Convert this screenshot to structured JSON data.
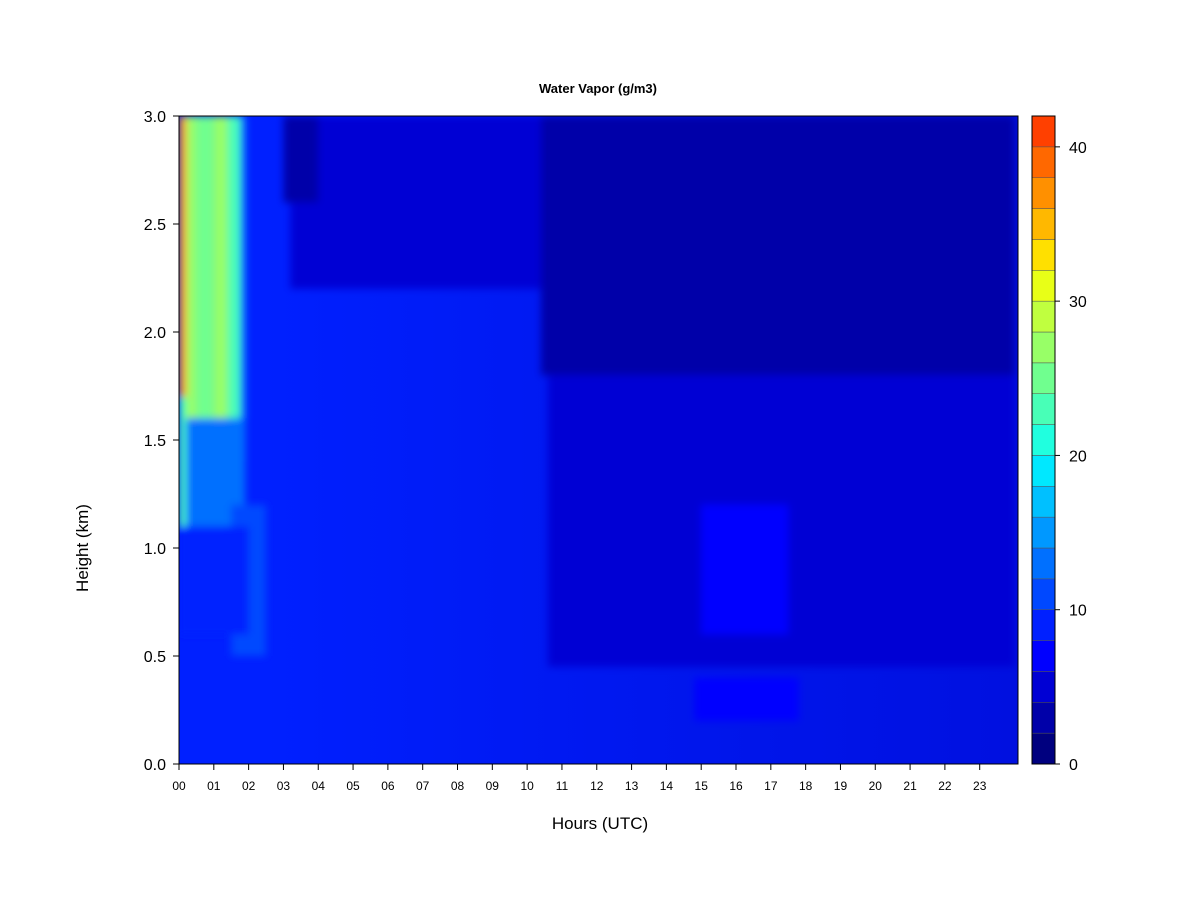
{
  "chart_data": {
    "type": "heatmap",
    "title": "Water Vapor (g/m3)",
    "xlabel": "Hours (UTC)",
    "ylabel": "Height (km)",
    "xlim": [
      0,
      24
    ],
    "ylim": [
      0,
      3
    ],
    "x_ticks": [
      "00",
      "01",
      "02",
      "03",
      "04",
      "05",
      "06",
      "07",
      "08",
      "09",
      "10",
      "11",
      "12",
      "13",
      "14",
      "15",
      "16",
      "17",
      "18",
      "19",
      "20",
      "21",
      "22",
      "23"
    ],
    "y_ticks": [
      "0.0",
      "0.5",
      "1.0",
      "1.5",
      "2.0",
      "2.5",
      "3.0"
    ],
    "colorbar": {
      "min": 0,
      "max": 42,
      "step": 2,
      "tick_labels": [
        "0",
        "10",
        "20",
        "30",
        "40"
      ],
      "colors": [
        "#00007f",
        "#0000a9",
        "#0000d4",
        "#0000ff",
        "#0020ff",
        "#0048ff",
        "#0070ff",
        "#0098ff",
        "#00c0ff",
        "#00e8ff",
        "#20ffdf",
        "#48ffb7",
        "#70ff8f",
        "#98ff67",
        "#c0ff3f",
        "#e8ff17",
        "#ffe000",
        "#ffb800",
        "#ff9000",
        "#ff6800",
        "#ff4000",
        "#ff1800",
        "#d40000",
        "#aa0000",
        "#7f0000"
      ]
    },
    "regions": [
      {
        "x0": 0,
        "x1": 0.2,
        "y0": 1.7,
        "y1": 3.0,
        "value": 37
      },
      {
        "x0": 0,
        "x1": 0.2,
        "y0": 1.1,
        "y1": 1.7,
        "value": 22
      },
      {
        "x0": 0.2,
        "x1": 0.5,
        "y0": 1.6,
        "y1": 3.0,
        "value": 27
      },
      {
        "x0": 0.5,
        "x1": 1.0,
        "y0": 1.5,
        "y1": 3.0,
        "value": 24
      },
      {
        "x0": 1.0,
        "x1": 1.4,
        "y0": 1.6,
        "y1": 3.0,
        "value": 26
      },
      {
        "x0": 1.4,
        "x1": 1.75,
        "y0": 1.6,
        "y1": 3.0,
        "value": 22
      },
      {
        "x0": 1.75,
        "x1": 1.9,
        "y0": 1.4,
        "y1": 3.0,
        "value": 14
      },
      {
        "x0": 0.2,
        "x1": 1.9,
        "y0": 1.1,
        "y1": 1.6,
        "value": 12
      },
      {
        "x0": 1.5,
        "x1": 2.5,
        "y0": 0.5,
        "y1": 1.2,
        "value": 10
      },
      {
        "x0": 0,
        "x1": 2.0,
        "y0": 0.6,
        "y1": 1.1,
        "value": 9
      },
      {
        "x0": 3.2,
        "x1": 10.4,
        "y0": 2.2,
        "y1": 3.0,
        "value": 5
      },
      {
        "x0": 3.0,
        "x1": 4.0,
        "y0": 2.6,
        "y1": 3.0,
        "value": 3
      },
      {
        "x0": 10.4,
        "x1": 24,
        "y0": 1.8,
        "y1": 3.0,
        "value": 3
      },
      {
        "x0": 10.6,
        "x1": 24,
        "y0": 0.45,
        "y1": 1.8,
        "value": 5
      },
      {
        "x0": 15.0,
        "x1": 17.5,
        "y0": 0.6,
        "y1": 1.2,
        "value": 6
      },
      {
        "x0": 14.8,
        "x1": 17.8,
        "y0": 0.2,
        "y1": 0.4,
        "value": 7
      }
    ]
  }
}
